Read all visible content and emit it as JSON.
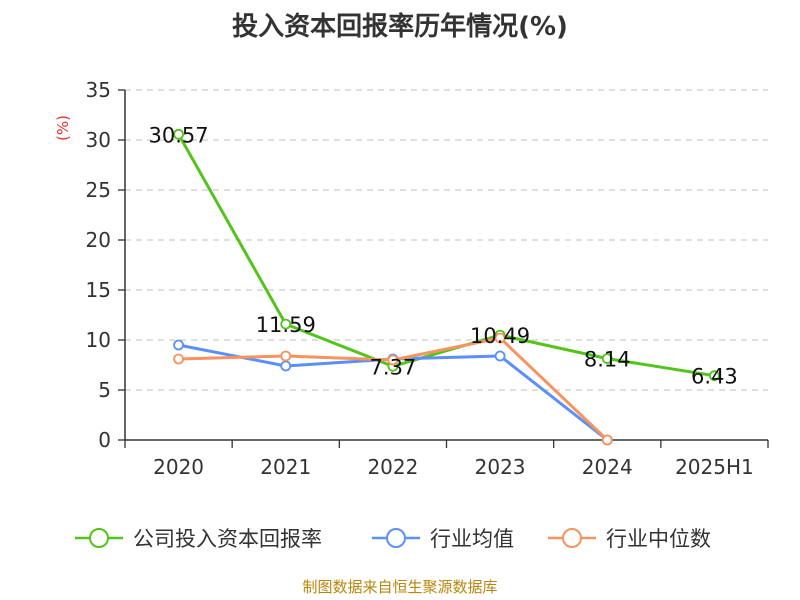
{
  "chart_data": {
    "type": "line",
    "title": "投入资本回报率历年情况(%)",
    "ylabel": "(%)",
    "categories": [
      "2020",
      "2021",
      "2022",
      "2023",
      "2024",
      "2025H1"
    ],
    "ylim": [
      0,
      35
    ],
    "yticks": [
      "0",
      "5",
      "10",
      "15",
      "20",
      "25",
      "30",
      "35"
    ],
    "grid": true,
    "legend_position": "bottom",
    "series": [
      {
        "name": "公司投入资本回报率",
        "color": "#52c41a",
        "values": [
          30.57,
          11.59,
          7.37,
          10.49,
          8.14,
          6.43
        ],
        "labels": [
          "30.57",
          "11.59",
          "7.37",
          "10.49",
          "8.14",
          "6.43"
        ]
      },
      {
        "name": "行业均值",
        "color": "#5b8ff9",
        "values": [
          9.5,
          7.4,
          8.1,
          8.4,
          0.0,
          null
        ]
      },
      {
        "name": "行业中位数",
        "color": "#f6935f",
        "values": [
          8.1,
          8.4,
          8.0,
          10.2,
          0.0,
          null
        ]
      }
    ]
  },
  "footer": {
    "source": "制图数据来自恒生聚源数据库"
  }
}
